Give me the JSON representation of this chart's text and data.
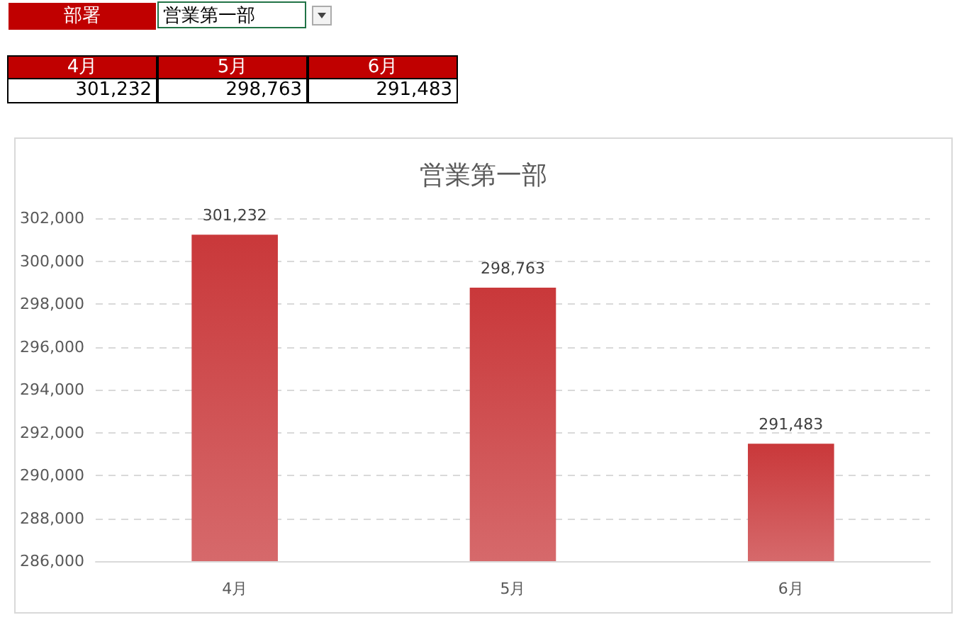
{
  "chart_data": {
    "type": "bar",
    "title": "営業第一部",
    "annotations": [
      "部署",
      "営業第一部"
    ],
    "categories": [
      "4月",
      "5月",
      "6月"
    ],
    "values": [
      301232,
      298763,
      291483
    ],
    "value_labels": [
      "301,232",
      "298,763",
      "291,483"
    ],
    "color": "#c9383a",
    "ylim": [
      286000,
      302000
    ],
    "yticks": [
      {
        "value": 286000,
        "label": "286,000"
      },
      {
        "value": 288000,
        "label": "288,000"
      },
      {
        "value": 290000,
        "label": "290,000"
      },
      {
        "value": 292000,
        "label": "292,000"
      },
      {
        "value": 294000,
        "label": "294,000"
      },
      {
        "value": 296000,
        "label": "296,000"
      },
      {
        "value": 298000,
        "label": "298,000"
      },
      {
        "value": 300000,
        "label": "300,000"
      },
      {
        "value": 302000,
        "label": "302,000"
      }
    ],
    "grid": "y"
  }
}
